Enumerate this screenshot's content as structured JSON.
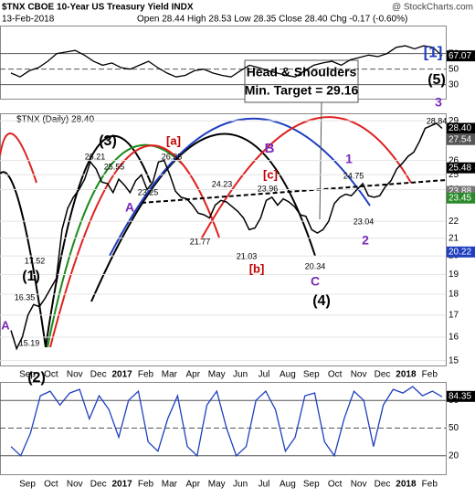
{
  "header": {
    "title": "$TNX CBOE 10-Year US Treasury Yield INDX",
    "date": "13-Feb-2018",
    "quote": "Open 28.44 High 28.53 Low 28.35 Close 28.40 Chg -0.17 (-0.60%)",
    "watermark": "@ StockCharts.com",
    "price_label": "$TNX (Daily) 28.40"
  },
  "chart_data": [
    {
      "type": "line",
      "name": "rsi",
      "color": "#000000",
      "ylim": [
        12,
        106
      ],
      "yticks": [
        30,
        50,
        70
      ],
      "value_labels": [
        {
          "value": 67.07,
          "label": "67.07"
        }
      ],
      "values": [
        45,
        40,
        48,
        52,
        60,
        70,
        72,
        74,
        68,
        60,
        55,
        58,
        52,
        50,
        55,
        60,
        52,
        45,
        40,
        42,
        48,
        50,
        45,
        42,
        40,
        48,
        55,
        52,
        48,
        45,
        42,
        40,
        48,
        55,
        58,
        60,
        55,
        62,
        65,
        68,
        66,
        70,
        78,
        80,
        76,
        80,
        78,
        67
      ]
    },
    {
      "type": "line",
      "name": "price",
      "color": "#000000",
      "log": true,
      "ylim": [
        14.8,
        29.6
      ],
      "yticks": [
        15,
        16,
        17,
        18,
        19,
        20,
        21,
        22,
        24,
        25,
        26,
        29
      ],
      "values": [
        16.3,
        15.5,
        16.0,
        17.0,
        17.5,
        17.4,
        17.8,
        18.3,
        18.8,
        21.5,
        22.8,
        23.5,
        24.0,
        24.7,
        25.9,
        25.4,
        24.5,
        24.4,
        23.8,
        24.7,
        24.3,
        23.8,
        24.6,
        25.0,
        24.0,
        24.5,
        25.9,
        26.0,
        25.0,
        23.9,
        23.5,
        23.4,
        23.0,
        22.5,
        22.4,
        22.2,
        23.0,
        23.3,
        23.2,
        22.9,
        22.6,
        22.2,
        21.5,
        21.6,
        22.2,
        23.3,
        23.5,
        23.0,
        23.4,
        23.2,
        22.9,
        22.4,
        22.3,
        21.5,
        21.3,
        21.5,
        22.0,
        23.1,
        23.5,
        23.7,
        23.6,
        24.0,
        24.4,
        23.6,
        23.5,
        23.6,
        24.2,
        24.6,
        25.4,
        25.8,
        26.3,
        26.6,
        27.4,
        28.4,
        28.6,
        28.8,
        28.4
      ],
      "value_labels": [
        {
          "value": 28.4,
          "label": "28.40",
          "color": "#000000"
        },
        {
          "value": 27.54,
          "label": "27.54",
          "color": "#555555"
        },
        {
          "value": 25.48,
          "label": "25.48",
          "color": "#000000"
        },
        {
          "value": 23.88,
          "label": "23.88",
          "color": "#777777"
        },
        {
          "value": 23.45,
          "label": "23.45",
          "color": "#2a8a2a"
        },
        {
          "value": 20.22,
          "label": "20.22",
          "color": "#1f3fbf"
        }
      ],
      "annotations": [
        "26.21",
        "25.55",
        "26.35",
        "23.25",
        "24.23",
        "23.96",
        "21.77",
        "21.03",
        "20.34",
        "24.75",
        "23.04",
        "28.84",
        "17.52",
        "16.35",
        "15.19",
        "(3)",
        "[a]",
        "B",
        "[c]",
        "1",
        "A",
        "[b]",
        "C",
        "(4)",
        "2",
        "(1)",
        "(2)",
        "A",
        "[1]",
        "(5)",
        "3",
        "Head & Shoulders",
        "Min. Target = 29.16"
      ]
    },
    {
      "type": "line",
      "name": "stochastic",
      "color": "#1f3fbf",
      "ylim": [
        0,
        100
      ],
      "yticks": [
        20,
        50,
        80
      ],
      "value_labels": [
        {
          "value": 84.35,
          "label": "84.35"
        }
      ],
      "values": [
        30,
        20,
        45,
        85,
        90,
        75,
        88,
        92,
        60,
        85,
        70,
        40,
        80,
        90,
        35,
        25,
        60,
        85,
        30,
        20,
        75,
        90,
        50,
        20,
        30,
        80,
        90,
        70,
        25,
        40,
        85,
        88,
        35,
        20,
        60,
        90,
        80,
        30,
        75,
        92,
        88,
        95,
        85,
        90,
        84
      ]
    }
  ],
  "months": [
    "Sep",
    "Oct",
    "Nov",
    "Dec",
    "2017",
    "Feb",
    "Mar",
    "Apr",
    "May",
    "Jun",
    "Jul",
    "Aug",
    "Sep",
    "Oct",
    "Nov",
    "Dec",
    "2018",
    "Feb"
  ]
}
